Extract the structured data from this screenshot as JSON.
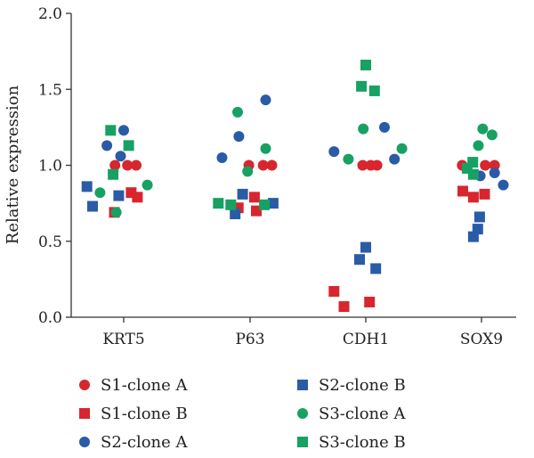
{
  "chart_data": {
    "type": "scatter",
    "title": "",
    "xlabel": "",
    "ylabel": "Relative expression",
    "ylim": [
      0,
      2.0
    ],
    "yticks": [
      "0.0",
      "0.5",
      "1.0",
      "1.5",
      "2.0"
    ],
    "categories": [
      "KRT5",
      "P63",
      "CDH1",
      "SOX9"
    ],
    "grid": false,
    "legend_position": "bottom",
    "series": [
      {
        "name": "S1-clone A",
        "marker": "circle",
        "color": "#d7262e",
        "points": [
          {
            "cat": "KRT5",
            "offset": -0.28,
            "y": 1.0
          },
          {
            "cat": "KRT5",
            "offset": 0.12,
            "y": 1.0
          },
          {
            "cat": "KRT5",
            "offset": 0.4,
            "y": 1.0
          },
          {
            "cat": "P63",
            "offset": -0.04,
            "y": 1.0
          },
          {
            "cat": "P63",
            "offset": 0.42,
            "y": 1.0
          },
          {
            "cat": "P63",
            "offset": 0.7,
            "y": 1.0
          },
          {
            "cat": "CDH1",
            "offset": -0.1,
            "y": 1.0
          },
          {
            "cat": "CDH1",
            "offset": 0.16,
            "y": 1.0
          },
          {
            "cat": "CDH1",
            "offset": 0.36,
            "y": 1.0
          },
          {
            "cat": "SOX9",
            "offset": -0.62,
            "y": 1.0
          },
          {
            "cat": "SOX9",
            "offset": 0.12,
            "y": 1.0
          },
          {
            "cat": "SOX9",
            "offset": 0.42,
            "y": 1.0
          }
        ]
      },
      {
        "name": "S1-clone B",
        "marker": "square",
        "color": "#d7262e",
        "points": [
          {
            "cat": "KRT5",
            "offset": -0.3,
            "y": 0.69
          },
          {
            "cat": "KRT5",
            "offset": 0.24,
            "y": 0.82
          },
          {
            "cat": "KRT5",
            "offset": 0.44,
            "y": 0.79
          },
          {
            "cat": "P63",
            "offset": -0.38,
            "y": 0.72
          },
          {
            "cat": "P63",
            "offset": 0.14,
            "y": 0.79
          },
          {
            "cat": "P63",
            "offset": 0.2,
            "y": 0.7
          },
          {
            "cat": "CDH1",
            "offset": -1.02,
            "y": 0.17
          },
          {
            "cat": "CDH1",
            "offset": -0.7,
            "y": 0.07
          },
          {
            "cat": "CDH1",
            "offset": 0.12,
            "y": 0.1
          },
          {
            "cat": "SOX9",
            "offset": -0.6,
            "y": 0.83
          },
          {
            "cat": "SOX9",
            "offset": -0.26,
            "y": 0.79
          },
          {
            "cat": "SOX9",
            "offset": 0.1,
            "y": 0.81
          }
        ]
      },
      {
        "name": "S2-clone A",
        "marker": "circle",
        "color": "#2a5ba6",
        "points": [
          {
            "cat": "KRT5",
            "offset": -0.54,
            "y": 1.13
          },
          {
            "cat": "KRT5",
            "offset": -0.1,
            "y": 1.06
          },
          {
            "cat": "KRT5",
            "offset": 0.0,
            "y": 1.23
          },
          {
            "cat": "P63",
            "offset": -0.9,
            "y": 1.05
          },
          {
            "cat": "P63",
            "offset": -0.36,
            "y": 1.19
          },
          {
            "cat": "P63",
            "offset": 0.5,
            "y": 1.43
          },
          {
            "cat": "CDH1",
            "offset": -1.02,
            "y": 1.09
          },
          {
            "cat": "CDH1",
            "offset": 0.6,
            "y": 1.25
          },
          {
            "cat": "CDH1",
            "offset": 0.92,
            "y": 1.04
          },
          {
            "cat": "SOX9",
            "offset": -0.04,
            "y": 0.93
          },
          {
            "cat": "SOX9",
            "offset": 0.42,
            "y": 0.95
          },
          {
            "cat": "SOX9",
            "offset": 0.7,
            "y": 0.87
          }
        ]
      },
      {
        "name": "S2-clone B",
        "marker": "square",
        "color": "#2a5ba6",
        "points": [
          {
            "cat": "KRT5",
            "offset": -1.18,
            "y": 0.86
          },
          {
            "cat": "KRT5",
            "offset": -1.0,
            "y": 0.73
          },
          {
            "cat": "KRT5",
            "offset": -0.16,
            "y": 0.8
          },
          {
            "cat": "P63",
            "offset": -0.24,
            "y": 0.81
          },
          {
            "cat": "P63",
            "offset": -0.48,
            "y": 0.68
          },
          {
            "cat": "P63",
            "offset": 0.74,
            "y": 0.75
          },
          {
            "cat": "CDH1",
            "offset": -0.2,
            "y": 0.38
          },
          {
            "cat": "CDH1",
            "offset": 0.0,
            "y": 0.46
          },
          {
            "cat": "CDH1",
            "offset": 0.32,
            "y": 0.32
          },
          {
            "cat": "SOX9",
            "offset": -0.26,
            "y": 0.53
          },
          {
            "cat": "SOX9",
            "offset": -0.06,
            "y": 0.66
          },
          {
            "cat": "SOX9",
            "offset": -0.12,
            "y": 0.58
          }
        ]
      },
      {
        "name": "S3-clone A",
        "marker": "circle",
        "color": "#17a163",
        "points": [
          {
            "cat": "KRT5",
            "offset": -0.76,
            "y": 0.82
          },
          {
            "cat": "KRT5",
            "offset": -0.24,
            "y": 0.69
          },
          {
            "cat": "KRT5",
            "offset": 0.76,
            "y": 0.87
          },
          {
            "cat": "P63",
            "offset": -0.4,
            "y": 1.35
          },
          {
            "cat": "P63",
            "offset": -0.08,
            "y": 0.96
          },
          {
            "cat": "P63",
            "offset": 0.5,
            "y": 1.11
          },
          {
            "cat": "CDH1",
            "offset": -0.56,
            "y": 1.04
          },
          {
            "cat": "CDH1",
            "offset": -0.08,
            "y": 1.24
          },
          {
            "cat": "CDH1",
            "offset": 1.16,
            "y": 1.11
          },
          {
            "cat": "SOX9",
            "offset": -0.1,
            "y": 1.13
          },
          {
            "cat": "SOX9",
            "offset": 0.04,
            "y": 1.24
          },
          {
            "cat": "SOX9",
            "offset": 0.34,
            "y": 1.2
          }
        ]
      },
      {
        "name": "S3-clone B",
        "marker": "square",
        "color": "#17a163",
        "points": [
          {
            "cat": "KRT5",
            "offset": -0.42,
            "y": 1.23
          },
          {
            "cat": "KRT5",
            "offset": -0.34,
            "y": 0.94
          },
          {
            "cat": "KRT5",
            "offset": 0.16,
            "y": 1.13
          },
          {
            "cat": "P63",
            "offset": -1.02,
            "y": 0.75
          },
          {
            "cat": "P63",
            "offset": -0.62,
            "y": 0.74
          },
          {
            "cat": "P63",
            "offset": 0.46,
            "y": 0.74
          },
          {
            "cat": "CDH1",
            "offset": -0.14,
            "y": 1.52
          },
          {
            "cat": "CDH1",
            "offset": 0.0,
            "y": 1.66
          },
          {
            "cat": "CDH1",
            "offset": 0.28,
            "y": 1.49
          },
          {
            "cat": "SOX9",
            "offset": -0.46,
            "y": 0.98
          },
          {
            "cat": "SOX9",
            "offset": -0.28,
            "y": 1.02
          },
          {
            "cat": "SOX9",
            "offset": -0.26,
            "y": 0.94
          }
        ]
      }
    ]
  }
}
